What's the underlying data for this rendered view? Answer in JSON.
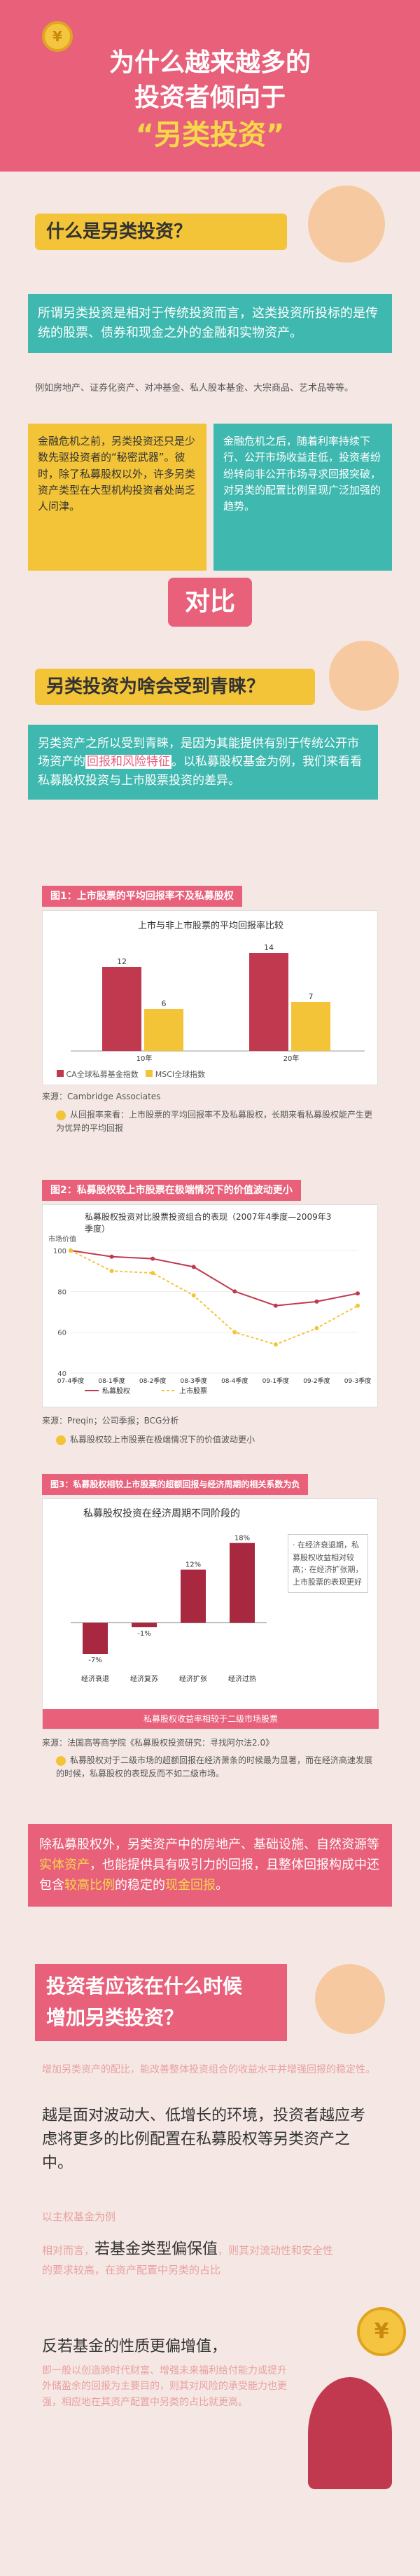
{
  "header": {
    "title_line1": "为什么越来越多的",
    "title_line2": "投资者倾向于",
    "title_line3": "“另类投资”",
    "coin_label": "¥"
  },
  "q1": {
    "title": "什么是另类投资？",
    "intro": "所谓另类投资是相对于传统投资而言，这类投资所投标的是传统的股票、债券和现金之外的金融和实物资产。",
    "example": "例如房地产、证券化资产、对冲基金、私人股本基金、大宗商品、艺术品等等。",
    "box_left": "金融危机之前，另类投资还只是少数先驱投资者的“秘密武器”。彼时，除了私募股权以外，许多另类资产类型在大型机构投资者处尚乏人问津。",
    "box_right": "金融危机之后，随着利率持续下行、公开市场收益走低，投资者纷纷转向非公开市场寻求回报突破，对另类的配置比例呈现广泛加强的趋势。",
    "compare_label": "对比"
  },
  "q2": {
    "title": "另类投资为啥会受到青睐？",
    "box_text1": "另类资产之所以受到青睐，是因为其能提供有别于传统公开市场资产的",
    "box_hl": "回报和风险特征",
    "box_text2": "。以私募股权基金为例，我们来看看私募股权投资与上市股票投资的差异。"
  },
  "fig1": {
    "tag": "图1：上市股票的平均回报率不及私募股权",
    "subtitle": "上市与非上市股票的平均回报率比较",
    "source": "来源：Cambridge Associates",
    "note": "从回报率来看：上市股票的平均回报率不及私募股权，长期来看私募股权能产生更为优异的平均回报",
    "legend_a": "CA全球私募基金指数",
    "legend_b": "MSCI全球指数"
  },
  "fig2": {
    "tag": "图2：私募股权较上市股票在极端情况下的价值波动更小",
    "subtitle": "私募股权投资对比股票投资组合的表现（2007年4季度—2009年3季度）",
    "ylabel": "市场价值",
    "source": "来源：Preqin；公司季报；BCG分析",
    "note": "私募股权较上市股票在极端情况下的价值波动更小",
    "legend_a": "私募股权",
    "legend_b": "上市股票"
  },
  "fig3": {
    "tag": "图3：私募股权相较上市股票的超额回报与经济周期的相关系数为负",
    "subtitle": "私募股权投资在经济周期不同阶段的",
    "source": "来源：法国高等商学院《私募股权投资研究：寻找阿尔法2.0》",
    "note": "私募股权对于二级市场的超额回报在经济萧条的时候最为显著，而在经济高速发展的时候，私募股权的表现反而不如二级市场。",
    "side_text": "· 在经济衰退期，私募股权收益相对较高；· 在经济扩张期，上市股票的表现更好",
    "rows": [
      "经济衰退",
      "经济复苏",
      "经济扩张",
      "经济过热"
    ],
    "bottom_text": "私募股权收益率相较于二级市场股票"
  },
  "summary": {
    "text1": "除私募股权外，另类资产中的房地产、基础设施、自然资源等",
    "hl1": "实体资产",
    "text2": "，也能提供具有吸引力的回报，且整体回报构成中还包含",
    "hl2": "较高比例",
    "text3": "的稳定的",
    "hl3": "现金回报",
    "text4": "。"
  },
  "q3": {
    "title_line1": "投资者应该在什么时候",
    "title_line2": "增加另类投资？",
    "p1": "增加另类资产的配比，能改善整体投资组合的收益水平并增强回报的稳定性。",
    "p2": "越是面对波动大、低增长的环境，投资者越应考虑将更多的比例配置在私募股权等另类资产之中。",
    "sub": "以主权基金为例",
    "p3a": "相对而言，",
    "p3b": "若基金类型偏保值",
    "p3c": "，则其对流动性和安全性的要求较高，在资产配置中另类的占比",
    "p4a": "反若基金的性质更偏增值，",
    "p4b": "即一般以创造跨时代财富、增强未来福利给付能力或提升外储盈余的回报为主要目的，则其对风险的承受能力也更强，相应地在其资产配置中另类的占比就更高。"
  },
  "chart_data": [
    {
      "type": "bar",
      "title": "上市与非上市股票的平均回报率比较",
      "categories": [
        "10年",
        "20年"
      ],
      "series": [
        {
          "name": "CA全球私募基金指数",
          "values": [
            12,
            14
          ]
        },
        {
          "name": "MSCI全球指数",
          "values": [
            6,
            7
          ]
        }
      ],
      "ylim": [
        0,
        16
      ]
    },
    {
      "type": "line",
      "title": "私募股权投资对比股票投资组合的表现（2007年4季度—2009年3季度）",
      "categories": [
        "07-4季度",
        "08-1季度",
        "08-2季度",
        "08-3季度",
        "08-4季度",
        "09-1季度",
        "09-2季度",
        "09-3季度"
      ],
      "series": [
        {
          "name": "私募股权",
          "values": [
            100,
            97,
            96,
            92,
            80,
            73,
            75,
            79
          ]
        },
        {
          "name": "上市股票",
          "values": [
            100,
            90,
            89,
            78,
            60,
            54,
            62,
            73
          ]
        }
      ],
      "ylabel": "市场价值",
      "ylim": [
        40,
        100
      ]
    },
    {
      "type": "bar",
      "title": "私募股权投资在经济周期不同阶段的",
      "categories": [
        "经济衰退",
        "经济复苏",
        "经济扩张",
        "经济过热"
      ],
      "values": [
        -7,
        -1,
        12,
        18
      ],
      "ylim": [
        -10,
        20
      ]
    }
  ]
}
